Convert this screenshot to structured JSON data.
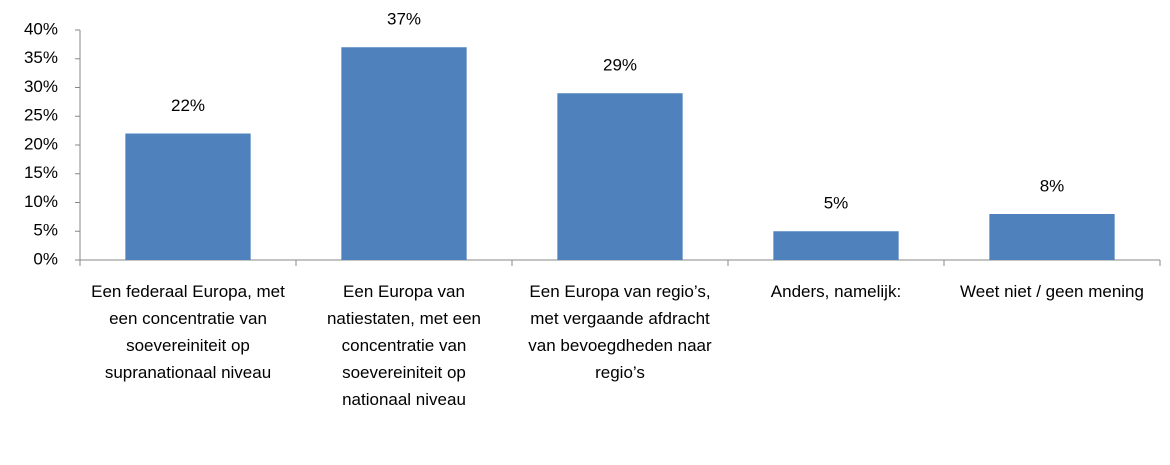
{
  "chart_data": {
    "type": "bar",
    "categories": [
      "Een federaal Europa, met een concentratie van soevereiniteit op supranationaal niveau",
      "Een Europa van natiestaten, met een concentratie van soevereiniteit op nationaal niveau",
      "Een Europa van regio’s, met vergaande afdracht van bevoegdheden naar regio’s",
      "Anders, namelijk:",
      "Weet niet / geen mening"
    ],
    "values": [
      22,
      37,
      29,
      5,
      8
    ],
    "value_labels": [
      "22%",
      "37%",
      "29%",
      "5%",
      "8%"
    ],
    "color": "#4f81bd",
    "ylim": [
      0,
      40
    ],
    "yticks": [
      {
        "value": 0,
        "label": "0%"
      },
      {
        "value": 5,
        "label": "5%"
      },
      {
        "value": 10,
        "label": "10%"
      },
      {
        "value": 15,
        "label": "15%"
      },
      {
        "value": 20,
        "label": "20%"
      },
      {
        "value": 25,
        "label": "25%"
      },
      {
        "value": 30,
        "label": "30%"
      },
      {
        "value": 35,
        "label": "35%"
      },
      {
        "value": 40,
        "label": "40%"
      }
    ],
    "grid": false
  }
}
